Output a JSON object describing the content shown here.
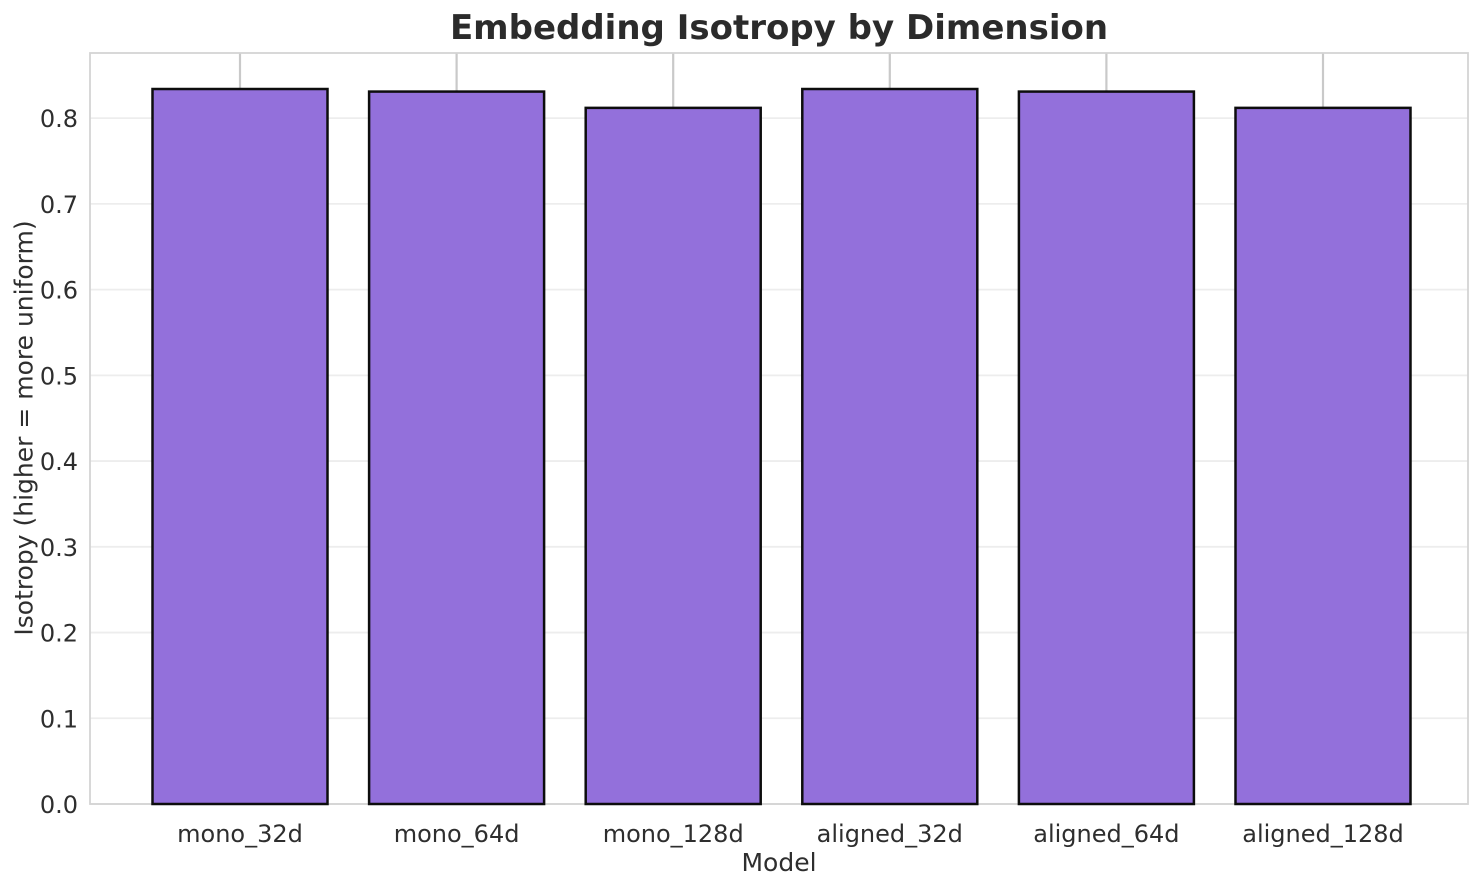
{
  "chart_data": {
    "type": "bar",
    "title": "Embedding Isotropy by Dimension",
    "xlabel": "Model",
    "ylabel": "Isotropy (higher = more uniform)",
    "categories": [
      "mono_32d",
      "mono_64d",
      "mono_128d",
      "aligned_32d",
      "aligned_64d",
      "aligned_128d"
    ],
    "values": [
      0.834,
      0.831,
      0.812,
      0.834,
      0.831,
      0.812
    ],
    "ylim": [
      0,
      0.876
    ],
    "yticks": [
      "0.0",
      "0.1",
      "0.2",
      "0.3",
      "0.4",
      "0.5",
      "0.6",
      "0.7",
      "0.8"
    ],
    "grid": true,
    "legend": false,
    "bar_color": "#9370DB",
    "bar_edge_color": "#0d0d0d",
    "grid_color_horizontal": "#ededed",
    "grid_color_vertical": "#c9c9c9",
    "plot_border_color": "#d4d4d4",
    "background_color": "#ffffff"
  }
}
